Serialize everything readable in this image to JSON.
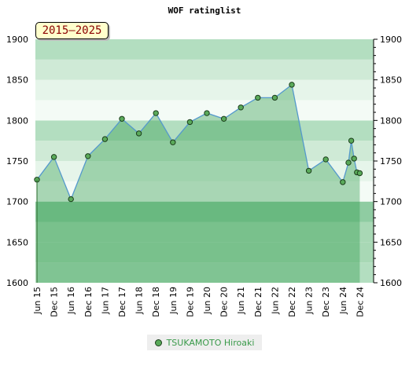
{
  "chart_data": {
    "type": "line",
    "title": "WOF ratinglist",
    "badge": "2015–2025",
    "ylim": [
      1600,
      1900
    ],
    "yticks": [
      1600,
      1650,
      1700,
      1750,
      1800,
      1850,
      1900
    ],
    "xticks": [
      "Jun 15",
      "Dec 15",
      "Jun 16",
      "Dec 16",
      "Jun 17",
      "Dec 17",
      "Jun 18",
      "Dec 18",
      "Jun 19",
      "Dec 19",
      "Jun 20",
      "Dec 20",
      "Jun 21",
      "Dec 21",
      "Jun 22",
      "Dec 22",
      "Jun 23",
      "Dec 23",
      "Jun 24",
      "Dec 24"
    ],
    "series": [
      {
        "name": "TSUKAMOTO Hiroaki",
        "points": [
          {
            "x": "2015-06",
            "y": 1727
          },
          {
            "x": "2015-12",
            "y": 1755
          },
          {
            "x": "2016-06",
            "y": 1703
          },
          {
            "x": "2016-12",
            "y": 1756
          },
          {
            "x": "2017-06",
            "y": 1777
          },
          {
            "x": "2017-12",
            "y": 1802
          },
          {
            "x": "2018-06",
            "y": 1784
          },
          {
            "x": "2018-12",
            "y": 1809
          },
          {
            "x": "2019-06",
            "y": 1773
          },
          {
            "x": "2019-12",
            "y": 1798
          },
          {
            "x": "2020-06",
            "y": 1809
          },
          {
            "x": "2020-12",
            "y": 1802
          },
          {
            "x": "2021-06",
            "y": 1816
          },
          {
            "x": "2021-12",
            "y": 1828
          },
          {
            "x": "2022-06",
            "y": 1828
          },
          {
            "x": "2022-12",
            "y": 1844
          },
          {
            "x": "2023-06",
            "y": 1738
          },
          {
            "x": "2023-12",
            "y": 1752
          },
          {
            "x": "2024-06",
            "y": 1724
          },
          {
            "x": "2024-08",
            "y": 1748
          },
          {
            "x": "2024-09",
            "y": 1775
          },
          {
            "x": "2024-10",
            "y": 1753
          },
          {
            "x": "2024-11",
            "y": 1736
          },
          {
            "x": "2024-12",
            "y": 1735
          }
        ]
      }
    ],
    "colors": {
      "line": "#5599cc",
      "marker": "#5aaa5a",
      "marker_edge": "#1b3d1b",
      "title": "#000000",
      "axis_text": "#000000",
      "legend_text": "#3a9a4a"
    },
    "legend_position": "bottom-center",
    "grid": false
  }
}
